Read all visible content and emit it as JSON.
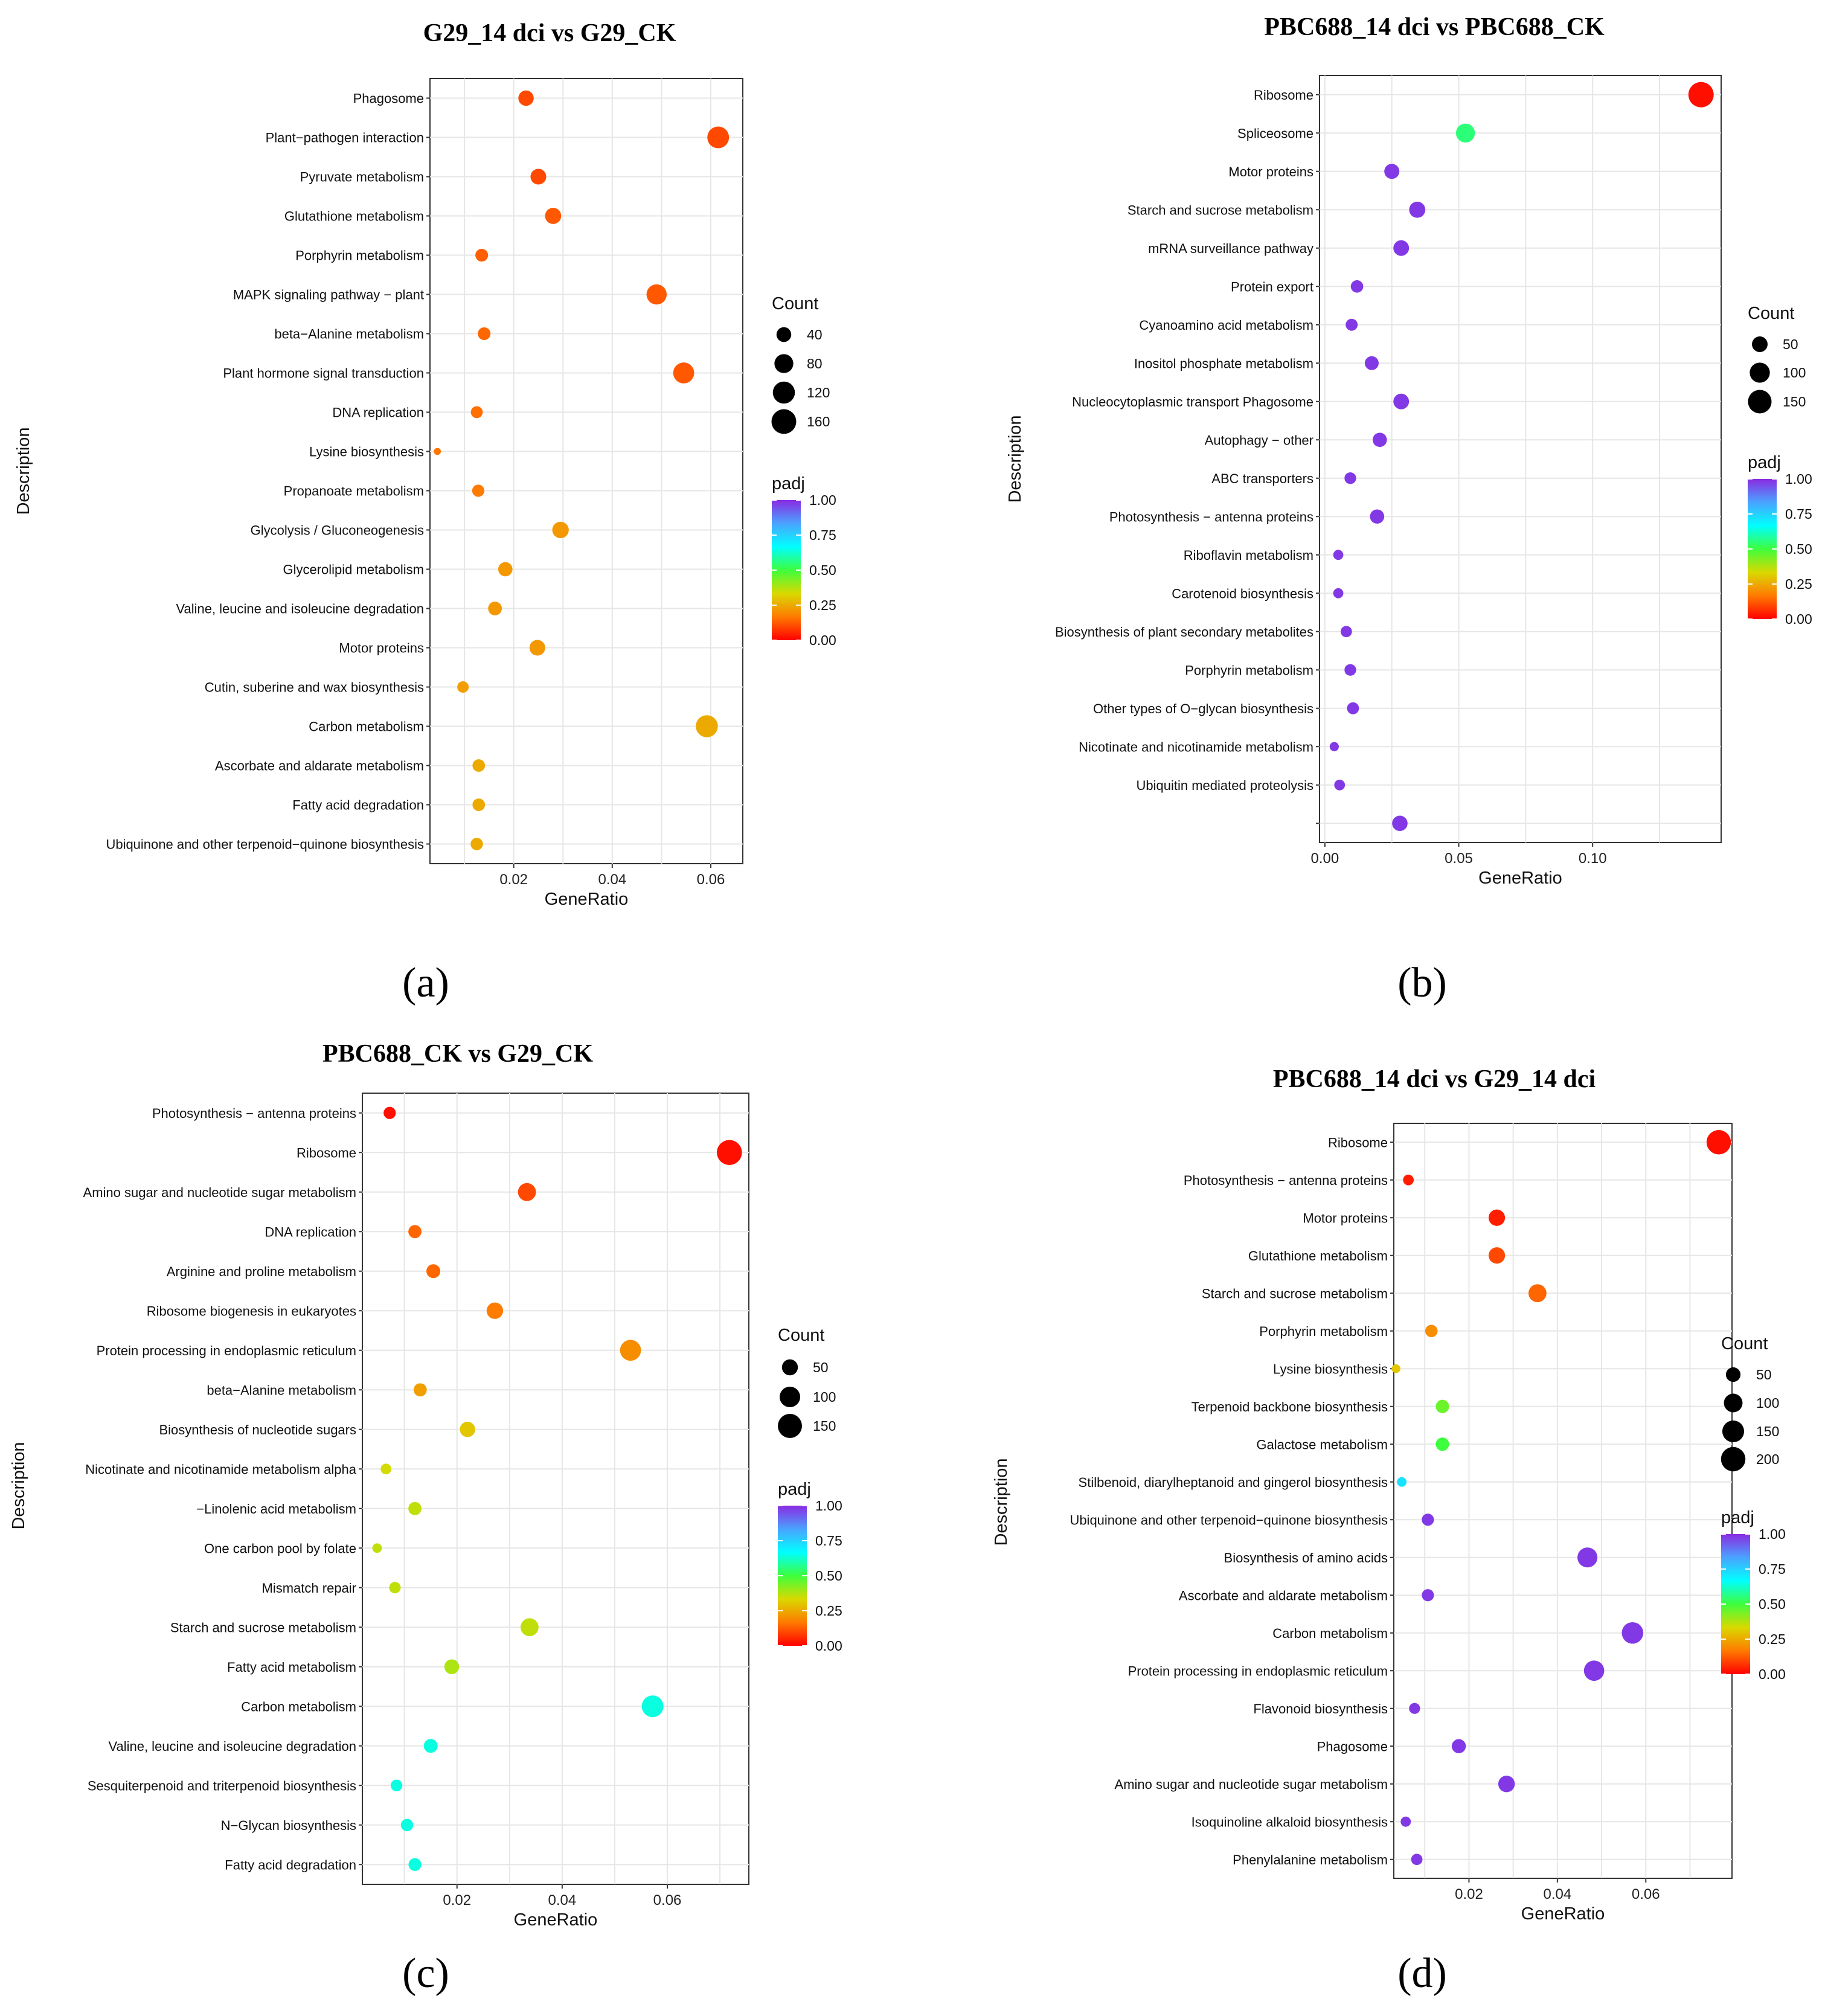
{
  "figure": {
    "colorscale": [
      "#ff0000",
      "#ff7a00",
      "#d9d900",
      "#3dff3d",
      "#00ffff",
      "#4aa3ff",
      "#8a2be2"
    ],
    "grid_color": "#e6e6e6",
    "xlabel": "GeneRatio",
    "ylabel": "Description",
    "size_legend_title": "Count",
    "color_legend_title": "padj",
    "color_legend_ticks": [
      "1.00",
      "0.75",
      "0.50",
      "0.25",
      "0.00"
    ]
  },
  "chart_data": [
    {
      "type": "scatter",
      "panel_label": "(a)",
      "title": "G29_14 dci vs G29_CK",
      "xlabel": "GeneRatio",
      "ylabel": "Description",
      "xlim": [
        0.003,
        0.0665
      ],
      "xticks": [
        0.02,
        0.04,
        0.06
      ],
      "xtick_labels": [
        "0.02",
        "0.04",
        "0.06"
      ],
      "count_legend": [
        40,
        80,
        120,
        160
      ],
      "count_max": 170,
      "categories": [
        "Phagosome",
        "Plant−pathogen interaction",
        "Pyruvate metabolism",
        "Glutathione metabolism",
        "Porphyrin metabolism",
        "MAPK signaling pathway − plant",
        "beta−Alanine metabolism",
        "Plant hormone signal transduction",
        "DNA replication",
        "Lysine biosynthesis",
        "Propanoate metabolism",
        "Glycolysis / Gluconeogenesis",
        "Glycerolipid metabolism",
        "Valine, leucine and isoleucine degradation",
        "Motor proteins",
        "Cutin, suberine and wax biosynthesis",
        "Carbon metabolism",
        "Ascorbate and aldarate metabolism",
        "Fatty acid degradation",
        "Ubiquinone and other terpenoid−quinone biosynthesis"
      ],
      "gene_ratio": [
        0.0225,
        0.0615,
        0.025,
        0.028,
        0.0135,
        0.049,
        0.014,
        0.0545,
        0.0125,
        0.0045,
        0.0128,
        0.0295,
        0.0183,
        0.0162,
        0.0248,
        0.0097,
        0.0592,
        0.0129,
        0.0129,
        0.0125
      ],
      "count": [
        45,
        115,
        48,
        52,
        25,
        95,
        25,
        105,
        20,
        2,
        22,
        55,
        36,
        32,
        48,
        18,
        120,
        24,
        24,
        23
      ],
      "padj": [
        0.1,
        0.1,
        0.1,
        0.12,
        0.13,
        0.12,
        0.14,
        0.12,
        0.15,
        0.16,
        0.17,
        0.22,
        0.22,
        0.22,
        0.22,
        0.23,
        0.25,
        0.25,
        0.25,
        0.25
      ]
    },
    {
      "type": "scatter",
      "panel_label": "(b)",
      "title": "PBC688_14 dci vs PBC688_CK",
      "xlabel": "GeneRatio",
      "ylabel": "Description",
      "xlim": [
        -0.002,
        0.148
      ],
      "xticks": [
        0.0,
        0.05,
        0.1
      ],
      "xtick_labels": [
        "0.00",
        "0.05",
        "0.10"
      ],
      "count_legend": [
        50,
        100,
        150
      ],
      "count_max": 180,
      "categories": [
        "Ribosome",
        "Spliceosome",
        "Motor proteins",
        "Starch and sucrose metabolism",
        "mRNA surveillance pathway",
        "Protein export",
        "Cyanoamino acid metabolism",
        "Inositol phosphate metabolism",
        "Nucleocytoplasmic transport Phagosome",
        "Autophagy − other",
        "ABC transporters",
        "Photosynthesis − antenna proteins",
        "Riboflavin metabolism",
        "Carotenoid biosynthesis",
        "Biosynthesis of plant secondary metabolites",
        "Porphyrin metabolism",
        "Other types of O−glycan biosynthesis",
        "Nicotinate and nicotinamide metabolism",
        "Ubiquitin mediated proteolysis",
        ""
      ],
      "gene_ratio": [
        0.1405,
        0.0525,
        0.025,
        0.0345,
        0.0285,
        0.012,
        0.01,
        0.0175,
        0.0285,
        0.0205,
        0.0095,
        0.0195,
        0.005,
        0.005,
        0.008,
        0.0095,
        0.0105,
        0.0035,
        0.0055,
        0.028
      ],
      "count": [
        180,
        85,
        45,
        55,
        50,
        25,
        22,
        35,
        50,
        38,
        20,
        38,
        12,
        12,
        18,
        20,
        22,
        8,
        15,
        48
      ],
      "padj": [
        0.02,
        0.55,
        0.98,
        0.98,
        0.98,
        0.98,
        0.98,
        0.98,
        0.98,
        0.98,
        0.98,
        0.98,
        0.98,
        0.98,
        0.98,
        0.98,
        0.98,
        0.98,
        0.98,
        0.98
      ]
    },
    {
      "type": "scatter",
      "panel_label": "(c)",
      "title": "PBC688_CK vs G29_CK",
      "xlabel": "GeneRatio",
      "ylabel": "Description",
      "xlim": [
        0.002,
        0.0755
      ],
      "xticks": [
        0.02,
        0.04,
        0.06
      ],
      "xtick_labels": [
        "0.02",
        "0.04",
        "0.06"
      ],
      "count_legend": [
        50,
        100,
        150
      ],
      "count_max": 170,
      "categories": [
        "Photosynthesis − antenna proteins",
        "Ribosome",
        "Amino sugar and nucleotide sugar metabolism",
        "DNA replication",
        "Arginine and proline metabolism",
        "Ribosome biogenesis in eukaryotes",
        "Protein processing in endoplasmic reticulum",
        "beta−Alanine metabolism",
        "Biosynthesis of nucleotide sugars",
        "Nicotinate and nicotinamide metabolism alpha",
        "−Linolenic acid metabolism",
        "One carbon pool by folate",
        "Mismatch repair",
        "Starch and sucrose metabolism",
        "Fatty acid metabolism",
        "Carbon metabolism",
        "Valine, leucine and isoleucine degradation",
        "Sesquiterpenoid and triterpenoid biosynthesis",
        "N−Glycan biosynthesis",
        "Fatty acid degradation"
      ],
      "gene_ratio": [
        0.0072,
        0.0718,
        0.0333,
        0.012,
        0.0155,
        0.0272,
        0.053,
        0.013,
        0.022,
        0.0065,
        0.012,
        0.0048,
        0.0082,
        0.0338,
        0.019,
        0.0572,
        0.015,
        0.0085,
        0.0105,
        0.012
      ],
      "count": [
        22,
        165,
        70,
        28,
        33,
        55,
        105,
        28,
        45,
        14,
        28,
        9,
        18,
        70,
        40,
        115,
        33,
        19,
        23,
        26
      ],
      "padj": [
        0.02,
        0.02,
        0.1,
        0.14,
        0.14,
        0.17,
        0.2,
        0.23,
        0.3,
        0.34,
        0.36,
        0.36,
        0.36,
        0.36,
        0.38,
        0.64,
        0.64,
        0.64,
        0.64,
        0.64
      ]
    },
    {
      "type": "scatter",
      "panel_label": "(d)",
      "title": "PBC688_14 dci vs G29_14 dci",
      "xlabel": "GeneRatio",
      "ylabel": "Description",
      "xlim": [
        0.003,
        0.0795
      ],
      "xticks": [
        0.02,
        0.04,
        0.06
      ],
      "xtick_labels": [
        "0.02",
        "0.04",
        "0.06"
      ],
      "count_legend": [
        50,
        100,
        150,
        200
      ],
      "count_max": 220,
      "categories": [
        "Ribosome",
        "Photosynthesis − antenna proteins",
        "Motor proteins",
        "Glutathione metabolism",
        "Starch and sucrose metabolism",
        "Porphyrin metabolism",
        "Lysine biosynthesis",
        "Terpenoid backbone biosynthesis",
        "Galactose metabolism",
        "Stilbenoid, diarylheptanoid and gingerol biosynthesis",
        "Ubiquinone and other terpenoid−quinone biosynthesis",
        "Biosynthesis of amino acids",
        "Ascorbate and aldarate metabolism",
        "Carbon metabolism",
        "Protein processing in endoplasmic reticulum",
        "Flavonoid biosynthesis",
        "Phagosome",
        "Amino sugar and nucleotide sugar metabolism",
        "Isoquinoline alkaloid biosynthesis",
        "Phenylalanine metabolism"
      ],
      "gene_ratio": [
        0.0765,
        0.0063,
        0.0263,
        0.0263,
        0.0355,
        0.0115,
        0.0035,
        0.014,
        0.014,
        0.0048,
        0.0107,
        0.0468,
        0.0107,
        0.057,
        0.0483,
        0.0077,
        0.0177,
        0.0285,
        0.0057,
        0.0082
      ],
      "count": [
        200,
        18,
        70,
        70,
        90,
        30,
        8,
        38,
        38,
        12,
        28,
        120,
        28,
        145,
        125,
        20,
        45,
        72,
        15,
        22
      ],
      "padj": [
        0.02,
        0.04,
        0.04,
        0.1,
        0.14,
        0.2,
        0.3,
        0.45,
        0.5,
        0.72,
        0.98,
        0.98,
        0.98,
        0.98,
        0.98,
        0.98,
        0.98,
        0.98,
        0.98,
        0.98
      ]
    }
  ]
}
